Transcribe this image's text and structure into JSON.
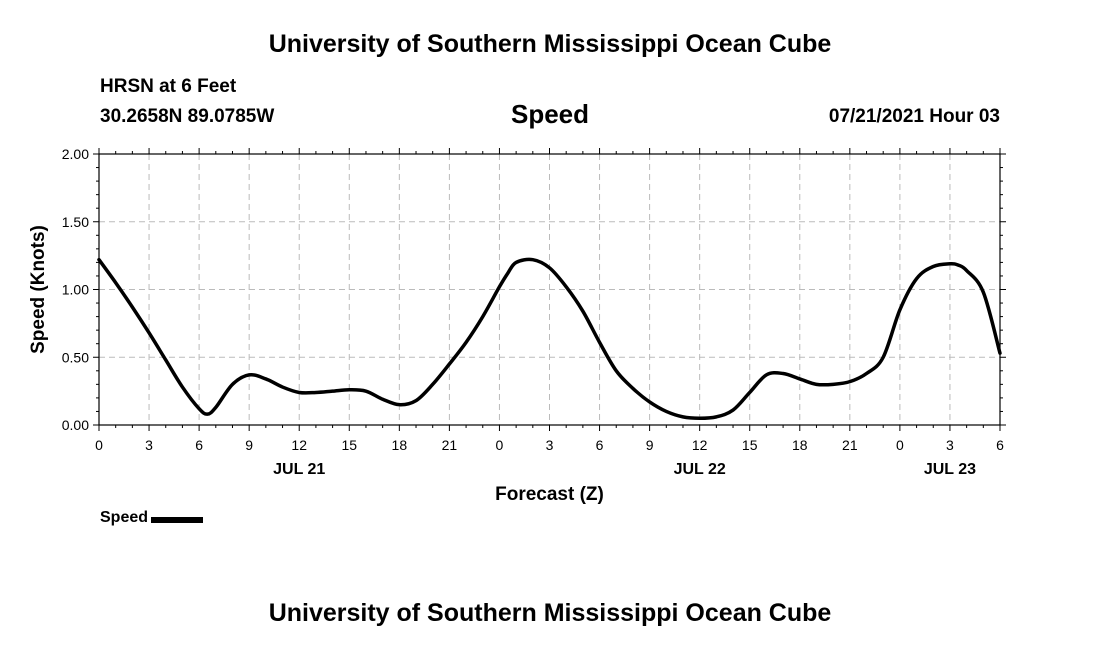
{
  "header": {
    "title": "University of Southern Mississippi Ocean Cube",
    "station": "HRSN at 6 Feet",
    "coordinates": "30.2658N  89.0785W",
    "chart_title": "Speed",
    "datetime": "07/21/2021 Hour 03"
  },
  "footer": {
    "title": "University of Southern Mississippi Ocean Cube"
  },
  "legend": {
    "label": "Speed"
  },
  "chart_data": {
    "type": "line",
    "title": "Speed",
    "xlabel": "Forecast (Z)",
    "ylabel": "Speed (Knots)",
    "xlim": [
      0,
      54
    ],
    "ylim": [
      0,
      2
    ],
    "grid": true,
    "x_ticks": [
      0,
      3,
      6,
      9,
      12,
      15,
      18,
      21,
      24,
      27,
      30,
      33,
      36,
      39,
      42,
      45,
      48,
      51,
      54
    ],
    "x_tick_labels": [
      "0",
      "3",
      "6",
      "9",
      "12",
      "15",
      "18",
      "21",
      "0",
      "3",
      "6",
      "9",
      "12",
      "15",
      "18",
      "21",
      "0",
      "3",
      "6"
    ],
    "y_ticks": [
      0,
      0.5,
      1,
      1.5,
      2
    ],
    "y_tick_labels": [
      "0.00",
      "0.50",
      "1.00",
      "1.50",
      "2.00"
    ],
    "date_labels": [
      {
        "x": 12,
        "label": "JUL 21"
      },
      {
        "x": 36,
        "label": "JUL 22"
      },
      {
        "x": 51,
        "label": "JUL 23"
      }
    ],
    "series": [
      {
        "name": "Speed",
        "color": "#000000",
        "x": [
          0,
          1,
          2,
          3,
          4,
          5,
          6,
          6.5,
          7,
          8,
          9,
          10,
          11,
          12,
          13,
          14,
          15,
          16,
          17,
          18,
          19,
          20,
          21,
          22,
          23,
          24,
          24.5,
          25,
          26,
          27,
          28,
          29,
          30,
          31,
          32,
          33,
          34,
          35,
          36,
          37,
          38,
          39,
          40,
          41,
          42,
          43,
          44,
          45,
          46,
          47,
          48,
          49,
          50,
          51,
          51.5,
          52,
          53,
          54
        ],
        "y": [
          1.22,
          1.05,
          0.87,
          0.68,
          0.48,
          0.28,
          0.12,
          0.08,
          0.13,
          0.3,
          0.37,
          0.34,
          0.28,
          0.24,
          0.24,
          0.25,
          0.26,
          0.25,
          0.19,
          0.15,
          0.18,
          0.3,
          0.45,
          0.61,
          0.8,
          1.02,
          1.12,
          1.2,
          1.22,
          1.16,
          1.02,
          0.84,
          0.61,
          0.4,
          0.27,
          0.17,
          0.1,
          0.06,
          0.05,
          0.06,
          0.11,
          0.24,
          0.37,
          0.38,
          0.34,
          0.3,
          0.3,
          0.32,
          0.38,
          0.5,
          0.85,
          1.08,
          1.17,
          1.19,
          1.18,
          1.14,
          0.98,
          0.53
        ]
      }
    ]
  }
}
